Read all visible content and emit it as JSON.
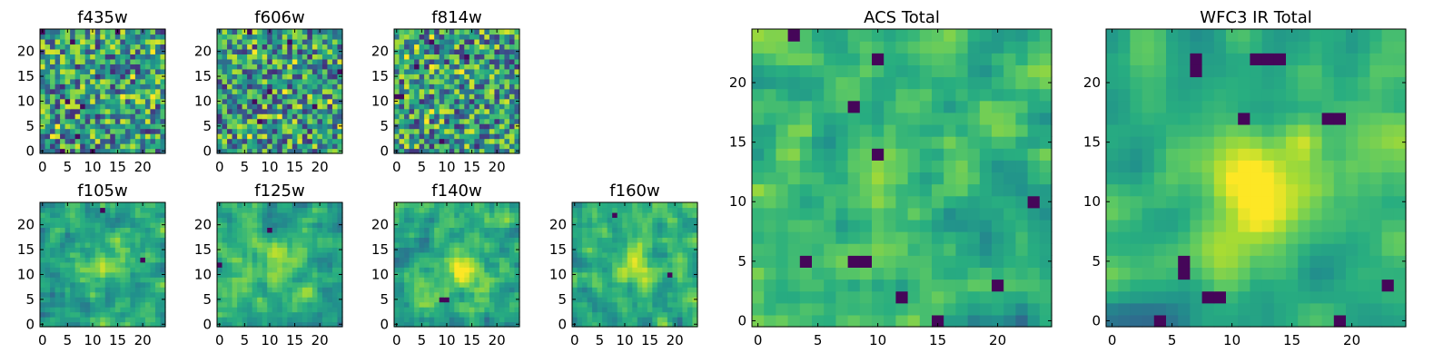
{
  "figure": {
    "colormap": "viridis",
    "colors": {
      "viridis_low": "#440154",
      "viridis_mid": "#21918c",
      "viridis_high": "#fde725",
      "axis": "#000000",
      "background": "#ffffff"
    }
  },
  "chart_data": [
    {
      "type": "heatmap",
      "title": "f435w",
      "xticks": [
        "0",
        "5",
        "10",
        "15",
        "20"
      ],
      "yticks": [
        "0",
        "5",
        "10",
        "15",
        "20"
      ],
      "xlim": [
        -0.5,
        24.5
      ],
      "ylim": [
        -0.5,
        24.5
      ],
      "grid": false,
      "pattern": "noise",
      "seed": 11,
      "smooth": 0,
      "blobs": [],
      "lows": []
    },
    {
      "type": "heatmap",
      "title": "f606w",
      "xticks": [
        "0",
        "5",
        "10",
        "15",
        "20"
      ],
      "yticks": [
        "0",
        "5",
        "10",
        "15",
        "20"
      ],
      "xlim": [
        -0.5,
        24.5
      ],
      "ylim": [
        -0.5,
        24.5
      ],
      "grid": false,
      "pattern": "noise",
      "seed": 23,
      "smooth": 0,
      "blobs": [],
      "lows": []
    },
    {
      "type": "heatmap",
      "title": "f814w",
      "xticks": [
        "0",
        "5",
        "10",
        "15",
        "20"
      ],
      "yticks": [
        "0",
        "5",
        "10",
        "15",
        "20"
      ],
      "xlim": [
        -0.5,
        24.5
      ],
      "ylim": [
        -0.5,
        24.5
      ],
      "grid": false,
      "pattern": "noise",
      "seed": 37,
      "smooth": 0,
      "blobs": [],
      "lows": []
    },
    {
      "type": "heatmap",
      "title": "f105w",
      "xticks": [
        "0",
        "5",
        "10",
        "15",
        "20"
      ],
      "yticks": [
        "0",
        "5",
        "10",
        "15",
        "20"
      ],
      "xlim": [
        -0.5,
        24.5
      ],
      "ylim": [
        -0.5,
        24.5
      ],
      "grid": false,
      "pattern": "smooth",
      "seed": 41,
      "smooth": 1,
      "blobs": [
        [
          13,
          12,
          3.5,
          0.25
        ]
      ],
      "lows": [
        [
          12,
          23
        ],
        [
          20,
          13
        ]
      ]
    },
    {
      "type": "heatmap",
      "title": "f125w",
      "xticks": [
        "0",
        "5",
        "10",
        "15",
        "20"
      ],
      "yticks": [
        "0",
        "5",
        "10",
        "15",
        "20"
      ],
      "xlim": [
        -0.5,
        24.5
      ],
      "ylim": [
        -0.5,
        24.5
      ],
      "grid": false,
      "pattern": "smooth",
      "seed": 53,
      "smooth": 1,
      "blobs": [
        [
          12,
          12,
          3,
          0.2
        ]
      ],
      "lows": [
        [
          10,
          19
        ],
        [
          0,
          12
        ]
      ]
    },
    {
      "type": "heatmap",
      "title": "f140w",
      "xticks": [
        "0",
        "5",
        "10",
        "15",
        "20"
      ],
      "yticks": [
        "0",
        "5",
        "10",
        "15",
        "20"
      ],
      "xlim": [
        -0.5,
        24.5
      ],
      "ylim": [
        -0.5,
        24.5
      ],
      "grid": false,
      "pattern": "smooth",
      "seed": 67,
      "smooth": 1,
      "blobs": [
        [
          13,
          11,
          3,
          0.3
        ]
      ],
      "lows": [
        [
          9,
          5
        ],
        [
          10,
          5
        ]
      ]
    },
    {
      "type": "heatmap",
      "title": "f160w",
      "xticks": [
        "0",
        "5",
        "10",
        "15",
        "20"
      ],
      "yticks": [
        "0",
        "5",
        "10",
        "15",
        "20"
      ],
      "xlim": [
        -0.5,
        24.5
      ],
      "ylim": [
        -0.5,
        24.5
      ],
      "grid": false,
      "pattern": "smooth",
      "seed": 79,
      "smooth": 1,
      "blobs": [
        [
          12,
          12,
          3,
          0.3
        ]
      ],
      "lows": [
        [
          8,
          22
        ],
        [
          19,
          10
        ]
      ]
    },
    {
      "type": "heatmap",
      "title": "ACS Total",
      "xticks": [
        "0",
        "5",
        "10",
        "15",
        "20"
      ],
      "yticks": [
        "0",
        "5",
        "10",
        "15",
        "20"
      ],
      "xlim": [
        -0.5,
        24.5
      ],
      "ylim": [
        -0.5,
        24.5
      ],
      "grid": false,
      "pattern": "noise-mild",
      "seed": 83,
      "smooth": 1,
      "blobs": [
        [
          12,
          11,
          2.5,
          0.2
        ]
      ],
      "lows": [
        [
          3,
          24
        ],
        [
          10,
          22
        ],
        [
          8,
          18
        ],
        [
          10,
          14
        ],
        [
          4,
          5
        ],
        [
          8,
          5
        ],
        [
          9,
          5
        ],
        [
          12,
          2
        ],
        [
          15,
          0
        ],
        [
          20,
          3
        ],
        [
          23,
          10
        ]
      ]
    },
    {
      "type": "heatmap",
      "title": "WFC3 IR Total",
      "xticks": [
        "0",
        "5",
        "10",
        "15",
        "20"
      ],
      "yticks": [
        "0",
        "5",
        "10",
        "15",
        "20"
      ],
      "xlim": [
        -0.5,
        24.5
      ],
      "ylim": [
        -0.5,
        24.5
      ],
      "grid": false,
      "pattern": "smooth",
      "seed": 97,
      "smooth": 2,
      "blobs": [
        [
          12,
          11,
          2.5,
          0.45
        ],
        [
          16,
          15,
          1.2,
          0.2
        ]
      ],
      "lows": [
        [
          7,
          22
        ],
        [
          7,
          21
        ],
        [
          12,
          22
        ],
        [
          13,
          22
        ],
        [
          14,
          22
        ],
        [
          11,
          17
        ],
        [
          19,
          17
        ],
        [
          18,
          17
        ],
        [
          6,
          5
        ],
        [
          6,
          4
        ],
        [
          8,
          2
        ],
        [
          9,
          2
        ],
        [
          23,
          3
        ],
        [
          4,
          0
        ],
        [
          19,
          0
        ]
      ]
    }
  ]
}
